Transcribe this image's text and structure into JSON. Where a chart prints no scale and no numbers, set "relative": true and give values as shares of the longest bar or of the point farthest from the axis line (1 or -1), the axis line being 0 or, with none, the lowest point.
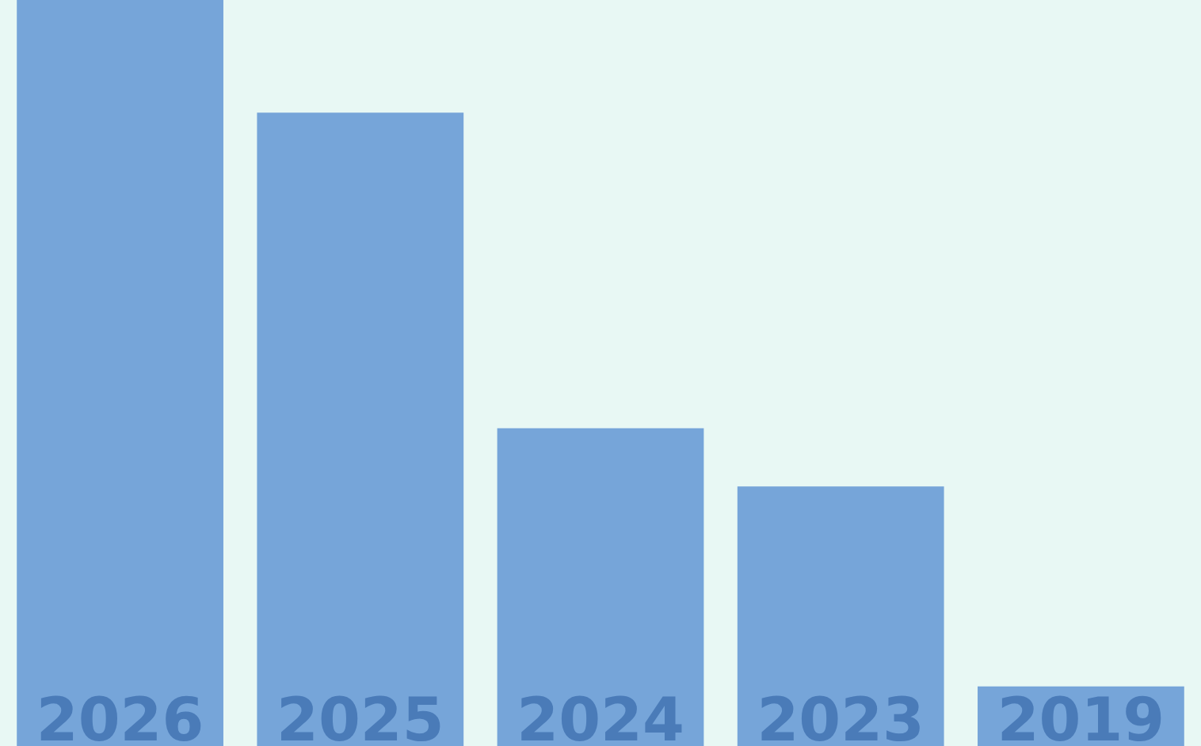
{
  "chart_data": {
    "type": "bar",
    "relative": true,
    "categories": [
      "2026",
      "2025",
      "2024",
      "2023",
      "2019"
    ],
    "values": [
      1,
      0.849,
      0.426,
      0.348,
      0.08
    ],
    "color": "#76a5d9"
  }
}
